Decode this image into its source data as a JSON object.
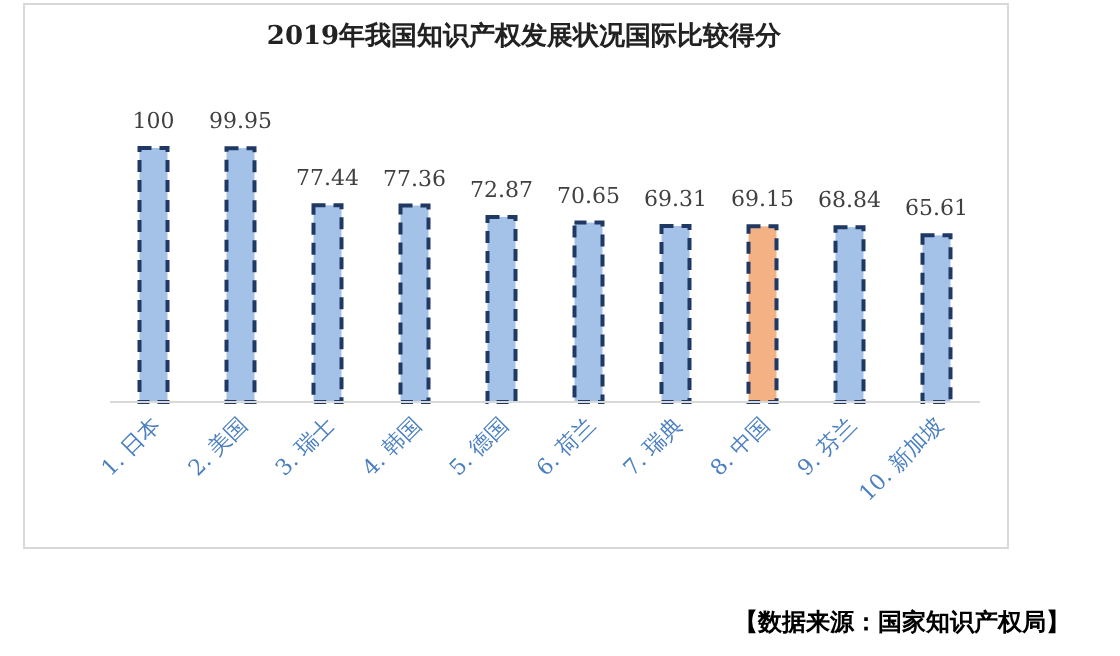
{
  "chart_data": {
    "type": "bar",
    "title": "2019年我国知识产权发展状况国际比较得分",
    "categories": [
      "1. 日本",
      "2. 美国",
      "3. 瑞士",
      "4. 韩国",
      "5. 德国",
      "6. 荷兰",
      "7. 瑞典",
      "8. 中国",
      "9. 芬兰",
      "10. 新加坡"
    ],
    "values": [
      100,
      99.95,
      77.44,
      77.36,
      72.87,
      70.65,
      69.31,
      69.15,
      68.84,
      65.61
    ],
    "colors": [
      "#a4c2e8",
      "#a4c2e8",
      "#a4c2e8",
      "#a4c2e8",
      "#a4c2e8",
      "#a4c2e8",
      "#a4c2e8",
      "#f4b183",
      "#a4c2e8",
      "#a4c2e8"
    ],
    "data_labels": true,
    "annotations": [
      "【数据来源：国家知识产权局】"
    ]
  }
}
